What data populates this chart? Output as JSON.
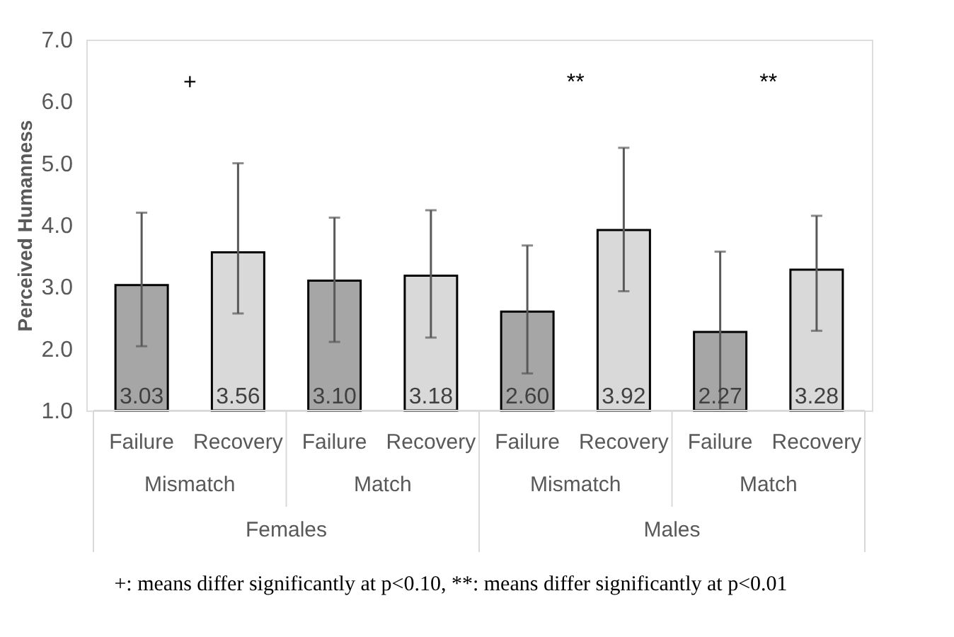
{
  "chart_data": {
    "type": "bar",
    "categories": [
      "Failure",
      "Recovery",
      "Failure",
      "Recovery",
      "Failure",
      "Recovery",
      "Failure",
      "Recovery"
    ],
    "values": [
      3.03,
      3.56,
      3.1,
      3.18,
      2.6,
      3.92,
      2.27,
      3.28
    ],
    "value_labels": [
      "3.03",
      "3.56",
      "3.10",
      "3.18",
      "2.60",
      "3.92",
      "2.27",
      "3.28"
    ],
    "colors": [
      "#a6a6a6",
      "#d9d9d9",
      "#a6a6a6",
      "#d9d9d9",
      "#a6a6a6",
      "#d9d9d9",
      "#a6a6a6",
      "#d9d9d9"
    ],
    "errors": [
      [
        2.04,
        4.2
      ],
      [
        2.57,
        5.0
      ],
      [
        2.11,
        4.12
      ],
      [
        2.18,
        4.24
      ],
      [
        1.6,
        3.67
      ],
      [
        2.93,
        5.25
      ],
      [
        1.0,
        3.57
      ],
      [
        2.29,
        4.15
      ]
    ],
    "ylabel": "Perceived Humanness",
    "ylim": [
      1,
      7
    ],
    "yticks": [
      {
        "value": 1,
        "label": "1.0"
      },
      {
        "value": 2,
        "label": "2.0"
      },
      {
        "value": 3,
        "label": "3.0"
      },
      {
        "value": 4,
        "label": "4.0"
      },
      {
        "value": 5,
        "label": "5.0"
      },
      {
        "value": 6,
        "label": "6.0"
      },
      {
        "value": 7,
        "label": "7.0"
      }
    ],
    "grid": false,
    "annotations": [
      "+",
      "**",
      "**",
      "Mismatch",
      "Match",
      "Mismatch",
      "Match",
      "Females",
      "Males",
      "+: means differ significantly at p<0.10, **: means differ significantly at p<0.01"
    ]
  }
}
